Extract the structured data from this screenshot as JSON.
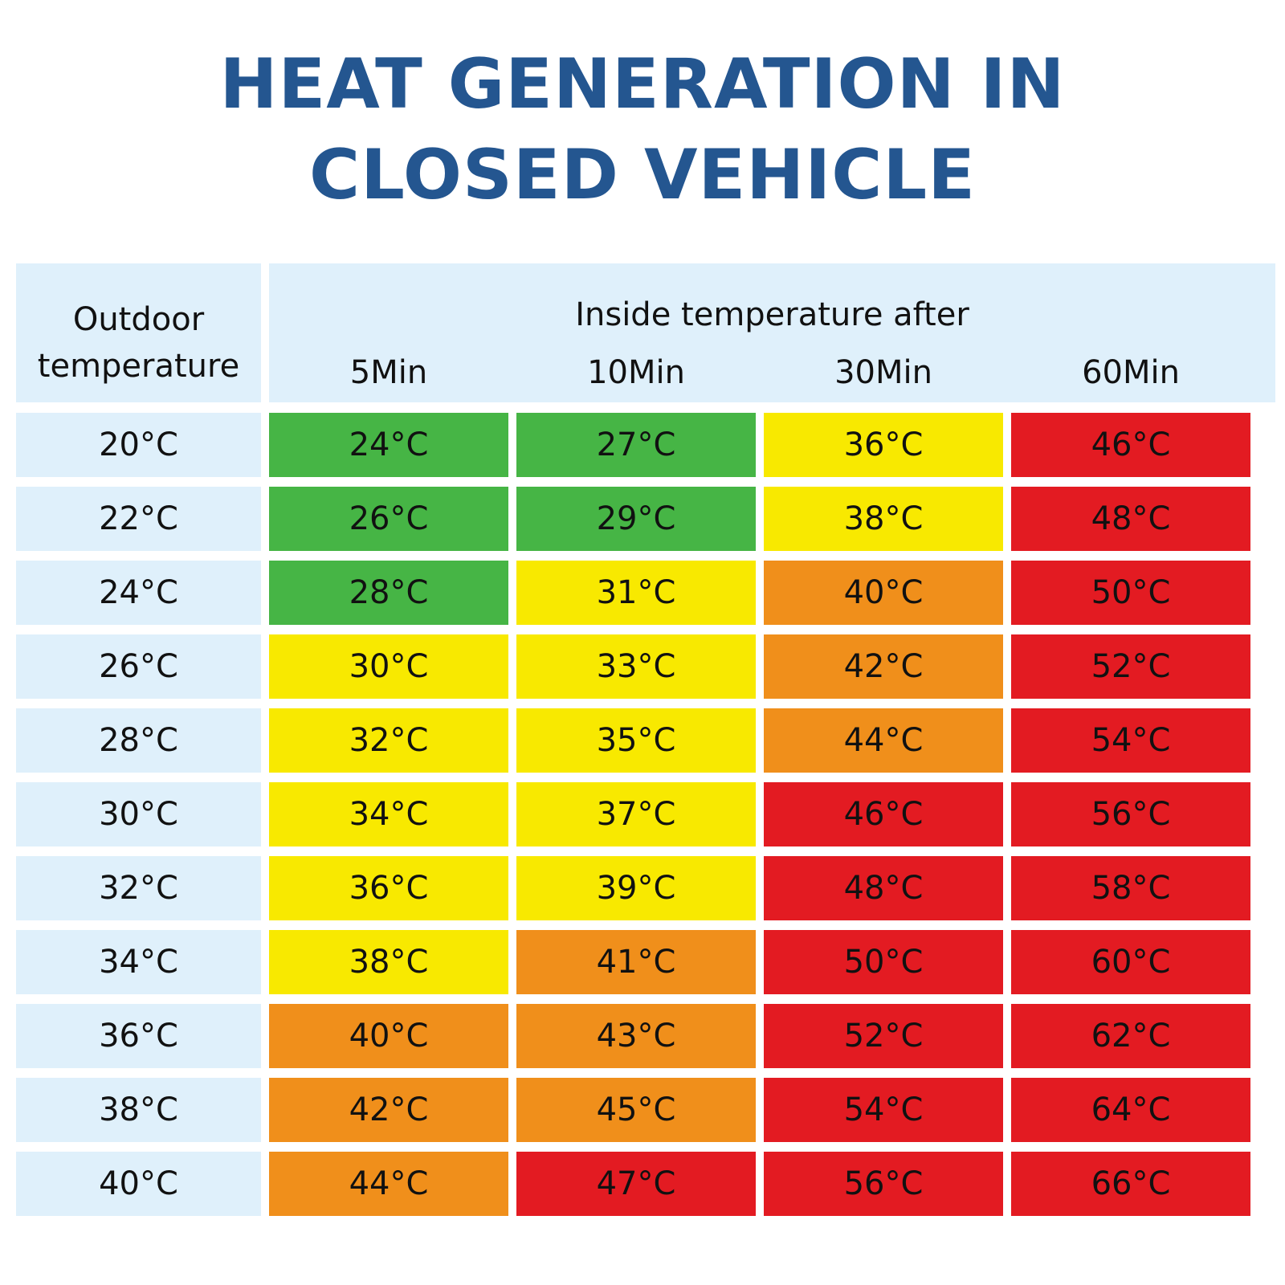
{
  "title": {
    "line1": "HEAT GENERATION IN",
    "line2": "CLOSED VEHICLE"
  },
  "header": {
    "outdoor_line1": "Outdoor",
    "outdoor_line2": "temperature",
    "inside": "Inside temperature after"
  },
  "colors": {
    "title": "#245690",
    "header_bg": "#dff0fb",
    "green": "#46b545",
    "yellow": "#f8e900",
    "orange": "#f08f1b",
    "red": "#e31b22"
  },
  "chart_data": {
    "type": "table",
    "columns": [
      "5Min",
      "10Min",
      "30Min",
      "60Min"
    ],
    "rows": [
      {
        "outdoor": "20°C",
        "values": [
          "24°C",
          "27°C",
          "36°C",
          "46°C"
        ],
        "levels": [
          "green",
          "green",
          "yellow",
          "red"
        ]
      },
      {
        "outdoor": "22°C",
        "values": [
          "26°C",
          "29°C",
          "38°C",
          "48°C"
        ],
        "levels": [
          "green",
          "green",
          "yellow",
          "red"
        ]
      },
      {
        "outdoor": "24°C",
        "values": [
          "28°C",
          "31°C",
          "40°C",
          "50°C"
        ],
        "levels": [
          "green",
          "yellow",
          "orange",
          "red"
        ]
      },
      {
        "outdoor": "26°C",
        "values": [
          "30°C",
          "33°C",
          "42°C",
          "52°C"
        ],
        "levels": [
          "yellow",
          "yellow",
          "orange",
          "red"
        ]
      },
      {
        "outdoor": "28°C",
        "values": [
          "32°C",
          "35°C",
          "44°C",
          "54°C"
        ],
        "levels": [
          "yellow",
          "yellow",
          "orange",
          "red"
        ]
      },
      {
        "outdoor": "30°C",
        "values": [
          "34°C",
          "37°C",
          "46°C",
          "56°C"
        ],
        "levels": [
          "yellow",
          "yellow",
          "red",
          "red"
        ]
      },
      {
        "outdoor": "32°C",
        "values": [
          "36°C",
          "39°C",
          "48°C",
          "58°C"
        ],
        "levels": [
          "yellow",
          "yellow",
          "red",
          "red"
        ]
      },
      {
        "outdoor": "34°C",
        "values": [
          "38°C",
          "41°C",
          "50°C",
          "60°C"
        ],
        "levels": [
          "yellow",
          "orange",
          "red",
          "red"
        ]
      },
      {
        "outdoor": "36°C",
        "values": [
          "40°C",
          "43°C",
          "52°C",
          "62°C"
        ],
        "levels": [
          "orange",
          "orange",
          "red",
          "red"
        ]
      },
      {
        "outdoor": "38°C",
        "values": [
          "42°C",
          "45°C",
          "54°C",
          "64°C"
        ],
        "levels": [
          "orange",
          "orange",
          "red",
          "red"
        ]
      },
      {
        "outdoor": "40°C",
        "values": [
          "44°C",
          "47°C",
          "56°C",
          "66°C"
        ],
        "levels": [
          "orange",
          "red",
          "red",
          "red"
        ]
      }
    ]
  }
}
